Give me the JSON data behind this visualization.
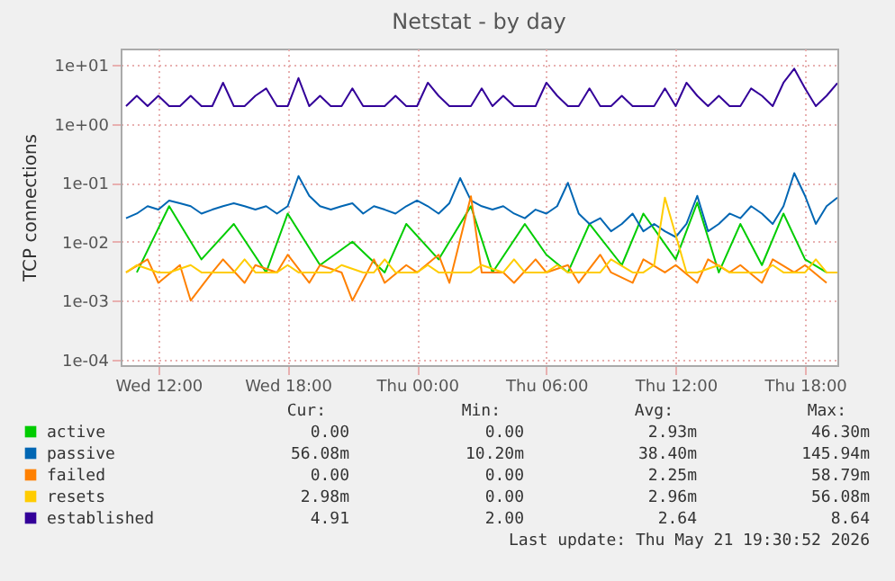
{
  "chart_data": {
    "type": "line",
    "title": "Netstat - by day",
    "ylabel": "TCP connections",
    "log": true,
    "grid": true,
    "legend": "bottom",
    "line_style": "solid",
    "marker": "none",
    "xlim": [
      "2026-05-20T10:15",
      "2026-05-21T19:30"
    ],
    "xticks": [
      {
        "value": "2026-05-20T12:00",
        "label": "Wed 12:00"
      },
      {
        "value": "2026-05-20T18:00",
        "label": "Wed 18:00"
      },
      {
        "value": "2026-05-21T00:00",
        "label": "Thu 00:00"
      },
      {
        "value": "2026-05-21T06:00",
        "label": "Thu 06:00"
      },
      {
        "value": "2026-05-21T12:00",
        "label": "Thu 12:00"
      },
      {
        "value": "2026-05-21T18:00",
        "label": "Thu 18:00"
      }
    ],
    "ylim": [
      8e-05,
      19
    ],
    "yticks": [
      {
        "value": 0.0001,
        "label": "1e-04"
      },
      {
        "value": 0.001,
        "label": "1e-03"
      },
      {
        "value": 0.01,
        "label": "1e-02"
      },
      {
        "value": 0.1,
        "label": "1e-01"
      },
      {
        "value": 1,
        "label": "1e+00"
      },
      {
        "value": 10,
        "label": "1e+01"
      }
    ],
    "x": [
      "2026-05-20T10:30",
      "2026-05-20T11:00",
      "2026-05-20T11:30",
      "2026-05-20T12:00",
      "2026-05-20T12:30",
      "2026-05-20T13:00",
      "2026-05-20T13:30",
      "2026-05-20T14:00",
      "2026-05-20T14:30",
      "2026-05-20T15:00",
      "2026-05-20T15:30",
      "2026-05-20T16:00",
      "2026-05-20T16:30",
      "2026-05-20T17:00",
      "2026-05-20T17:30",
      "2026-05-20T18:00",
      "2026-05-20T18:30",
      "2026-05-20T19:00",
      "2026-05-20T19:30",
      "2026-05-20T20:00",
      "2026-05-20T20:30",
      "2026-05-20T21:00",
      "2026-05-20T21:30",
      "2026-05-20T22:00",
      "2026-05-20T22:30",
      "2026-05-20T23:00",
      "2026-05-20T23:30",
      "2026-05-21T00:00",
      "2026-05-21T00:30",
      "2026-05-21T01:00",
      "2026-05-21T01:30",
      "2026-05-21T02:00",
      "2026-05-21T02:30",
      "2026-05-21T03:00",
      "2026-05-21T03:30",
      "2026-05-21T04:00",
      "2026-05-21T04:30",
      "2026-05-21T05:00",
      "2026-05-21T05:30",
      "2026-05-21T06:00",
      "2026-05-21T06:30",
      "2026-05-21T07:00",
      "2026-05-21T07:30",
      "2026-05-21T08:00",
      "2026-05-21T08:30",
      "2026-05-21T09:00",
      "2026-05-21T09:30",
      "2026-05-21T10:00",
      "2026-05-21T10:30",
      "2026-05-21T11:00",
      "2026-05-21T11:30",
      "2026-05-21T12:00",
      "2026-05-21T12:30",
      "2026-05-21T13:00",
      "2026-05-21T13:30",
      "2026-05-21T14:00",
      "2026-05-21T14:30",
      "2026-05-21T15:00",
      "2026-05-21T15:30",
      "2026-05-21T16:00",
      "2026-05-21T16:30",
      "2026-05-21T17:00",
      "2026-05-21T17:30",
      "2026-05-21T18:00",
      "2026-05-21T18:30",
      "2026-05-21T19:00",
      "2026-05-21T19:30"
    ],
    "series": [
      {
        "name": "active",
        "color": "#00cc00",
        "values": [
          null,
          0.003,
          null,
          null,
          0.04,
          null,
          null,
          0.005,
          null,
          null,
          0.02,
          null,
          null,
          0.003,
          null,
          0.03,
          null,
          null,
          0.004,
          null,
          null,
          0.01,
          null,
          null,
          0.003,
          null,
          0.02,
          null,
          null,
          0.005,
          null,
          null,
          0.04,
          null,
          0.003,
          null,
          null,
          0.02,
          null,
          0.006,
          null,
          0.003,
          null,
          0.02,
          null,
          null,
          0.004,
          null,
          0.03,
          null,
          null,
          0.005,
          null,
          0.046,
          null,
          0.003,
          null,
          0.02,
          null,
          0.004,
          null,
          0.03,
          null,
          0.005,
          null,
          0.003,
          null
        ]
      },
      {
        "name": "passive",
        "color": "#0066b3",
        "values": [
          0.025,
          0.03,
          0.04,
          0.035,
          0.05,
          0.045,
          0.04,
          0.03,
          0.035,
          0.04,
          0.045,
          0.04,
          0.035,
          0.04,
          0.03,
          0.04,
          0.13,
          0.06,
          0.04,
          0.035,
          0.04,
          0.045,
          0.03,
          0.04,
          0.035,
          0.03,
          0.04,
          0.05,
          0.04,
          0.03,
          0.045,
          0.12,
          0.05,
          0.04,
          0.035,
          0.04,
          0.03,
          0.025,
          0.035,
          0.03,
          0.04,
          0.1,
          0.03,
          0.02,
          0.025,
          0.015,
          0.02,
          0.03,
          0.015,
          0.02,
          0.015,
          0.012,
          0.02,
          0.06,
          0.015,
          0.02,
          0.03,
          0.025,
          0.04,
          0.03,
          0.02,
          0.04,
          0.146,
          0.06,
          0.02,
          0.04,
          0.056
        ]
      },
      {
        "name": "failed",
        "color": "#ff8000",
        "values": [
          0.003,
          null,
          0.005,
          0.002,
          null,
          0.004,
          0.001,
          null,
          0.003,
          0.005,
          null,
          0.002,
          0.004,
          null,
          0.003,
          0.006,
          null,
          0.002,
          0.004,
          null,
          0.003,
          0.001,
          null,
          0.005,
          0.002,
          null,
          0.004,
          0.003,
          null,
          0.006,
          0.002,
          null,
          0.059,
          0.003,
          null,
          0.003,
          0.002,
          null,
          0.005,
          0.003,
          null,
          0.004,
          0.002,
          null,
          0.006,
          0.003,
          null,
          0.002,
          0.005,
          null,
          0.003,
          0.004,
          null,
          0.002,
          0.005,
          null,
          0.003,
          0.004,
          null,
          0.002,
          0.005,
          null,
          0.003,
          0.004,
          null,
          0.002,
          null
        ]
      },
      {
        "name": "resets",
        "color": "#ffcc00",
        "values": [
          0.003,
          0.004,
          null,
          0.003,
          0.003,
          null,
          0.004,
          0.003,
          0.003,
          null,
          0.003,
          0.005,
          0.003,
          null,
          0.003,
          0.004,
          0.003,
          null,
          0.003,
          0.003,
          0.004,
          null,
          0.003,
          0.003,
          0.005,
          0.003,
          null,
          0.003,
          0.004,
          0.003,
          null,
          0.003,
          0.003,
          0.004,
          null,
          0.003,
          0.005,
          0.003,
          null,
          0.003,
          0.004,
          0.003,
          null,
          0.003,
          0.003,
          0.005,
          null,
          0.003,
          0.003,
          0.004,
          0.056,
          null,
          0.003,
          0.003,
          null,
          0.004,
          0.003,
          0.003,
          null,
          0.003,
          0.004,
          0.003,
          null,
          0.003,
          0.005,
          0.003,
          0.00298
        ]
      },
      {
        "name": "established",
        "color": "#330099",
        "values": [
          2,
          3,
          2,
          3,
          2,
          2,
          3,
          2,
          2,
          5,
          2,
          2,
          3,
          4,
          2,
          2,
          6,
          2,
          3,
          2,
          2,
          4,
          2,
          2,
          2,
          3,
          2,
          2,
          5,
          3,
          2,
          2,
          2,
          4,
          2,
          3,
          2,
          2,
          2,
          5,
          3,
          2,
          2,
          4,
          2,
          2,
          3,
          2,
          2,
          2,
          4,
          2,
          5,
          3,
          2,
          3,
          2,
          2,
          4,
          3,
          2,
          5,
          8.64,
          4,
          2,
          3,
          4.91
        ]
      }
    ],
    "annotations": [
      "Cur:",
      "Min:",
      "Avg:",
      "Max:",
      "0.00",
      "0.00",
      "2.93m",
      "46.30m",
      "56.08m",
      "10.20m",
      "38.40m",
      "145.94m",
      "0.00",
      "0.00",
      "2.25m",
      "58.79m",
      "2.98m",
      "0.00",
      "2.96m",
      "56.08m",
      "4.91",
      "2.00",
      "2.64",
      "8.64",
      "Last update: Thu May 21 19:30:52 2026"
    ]
  }
}
